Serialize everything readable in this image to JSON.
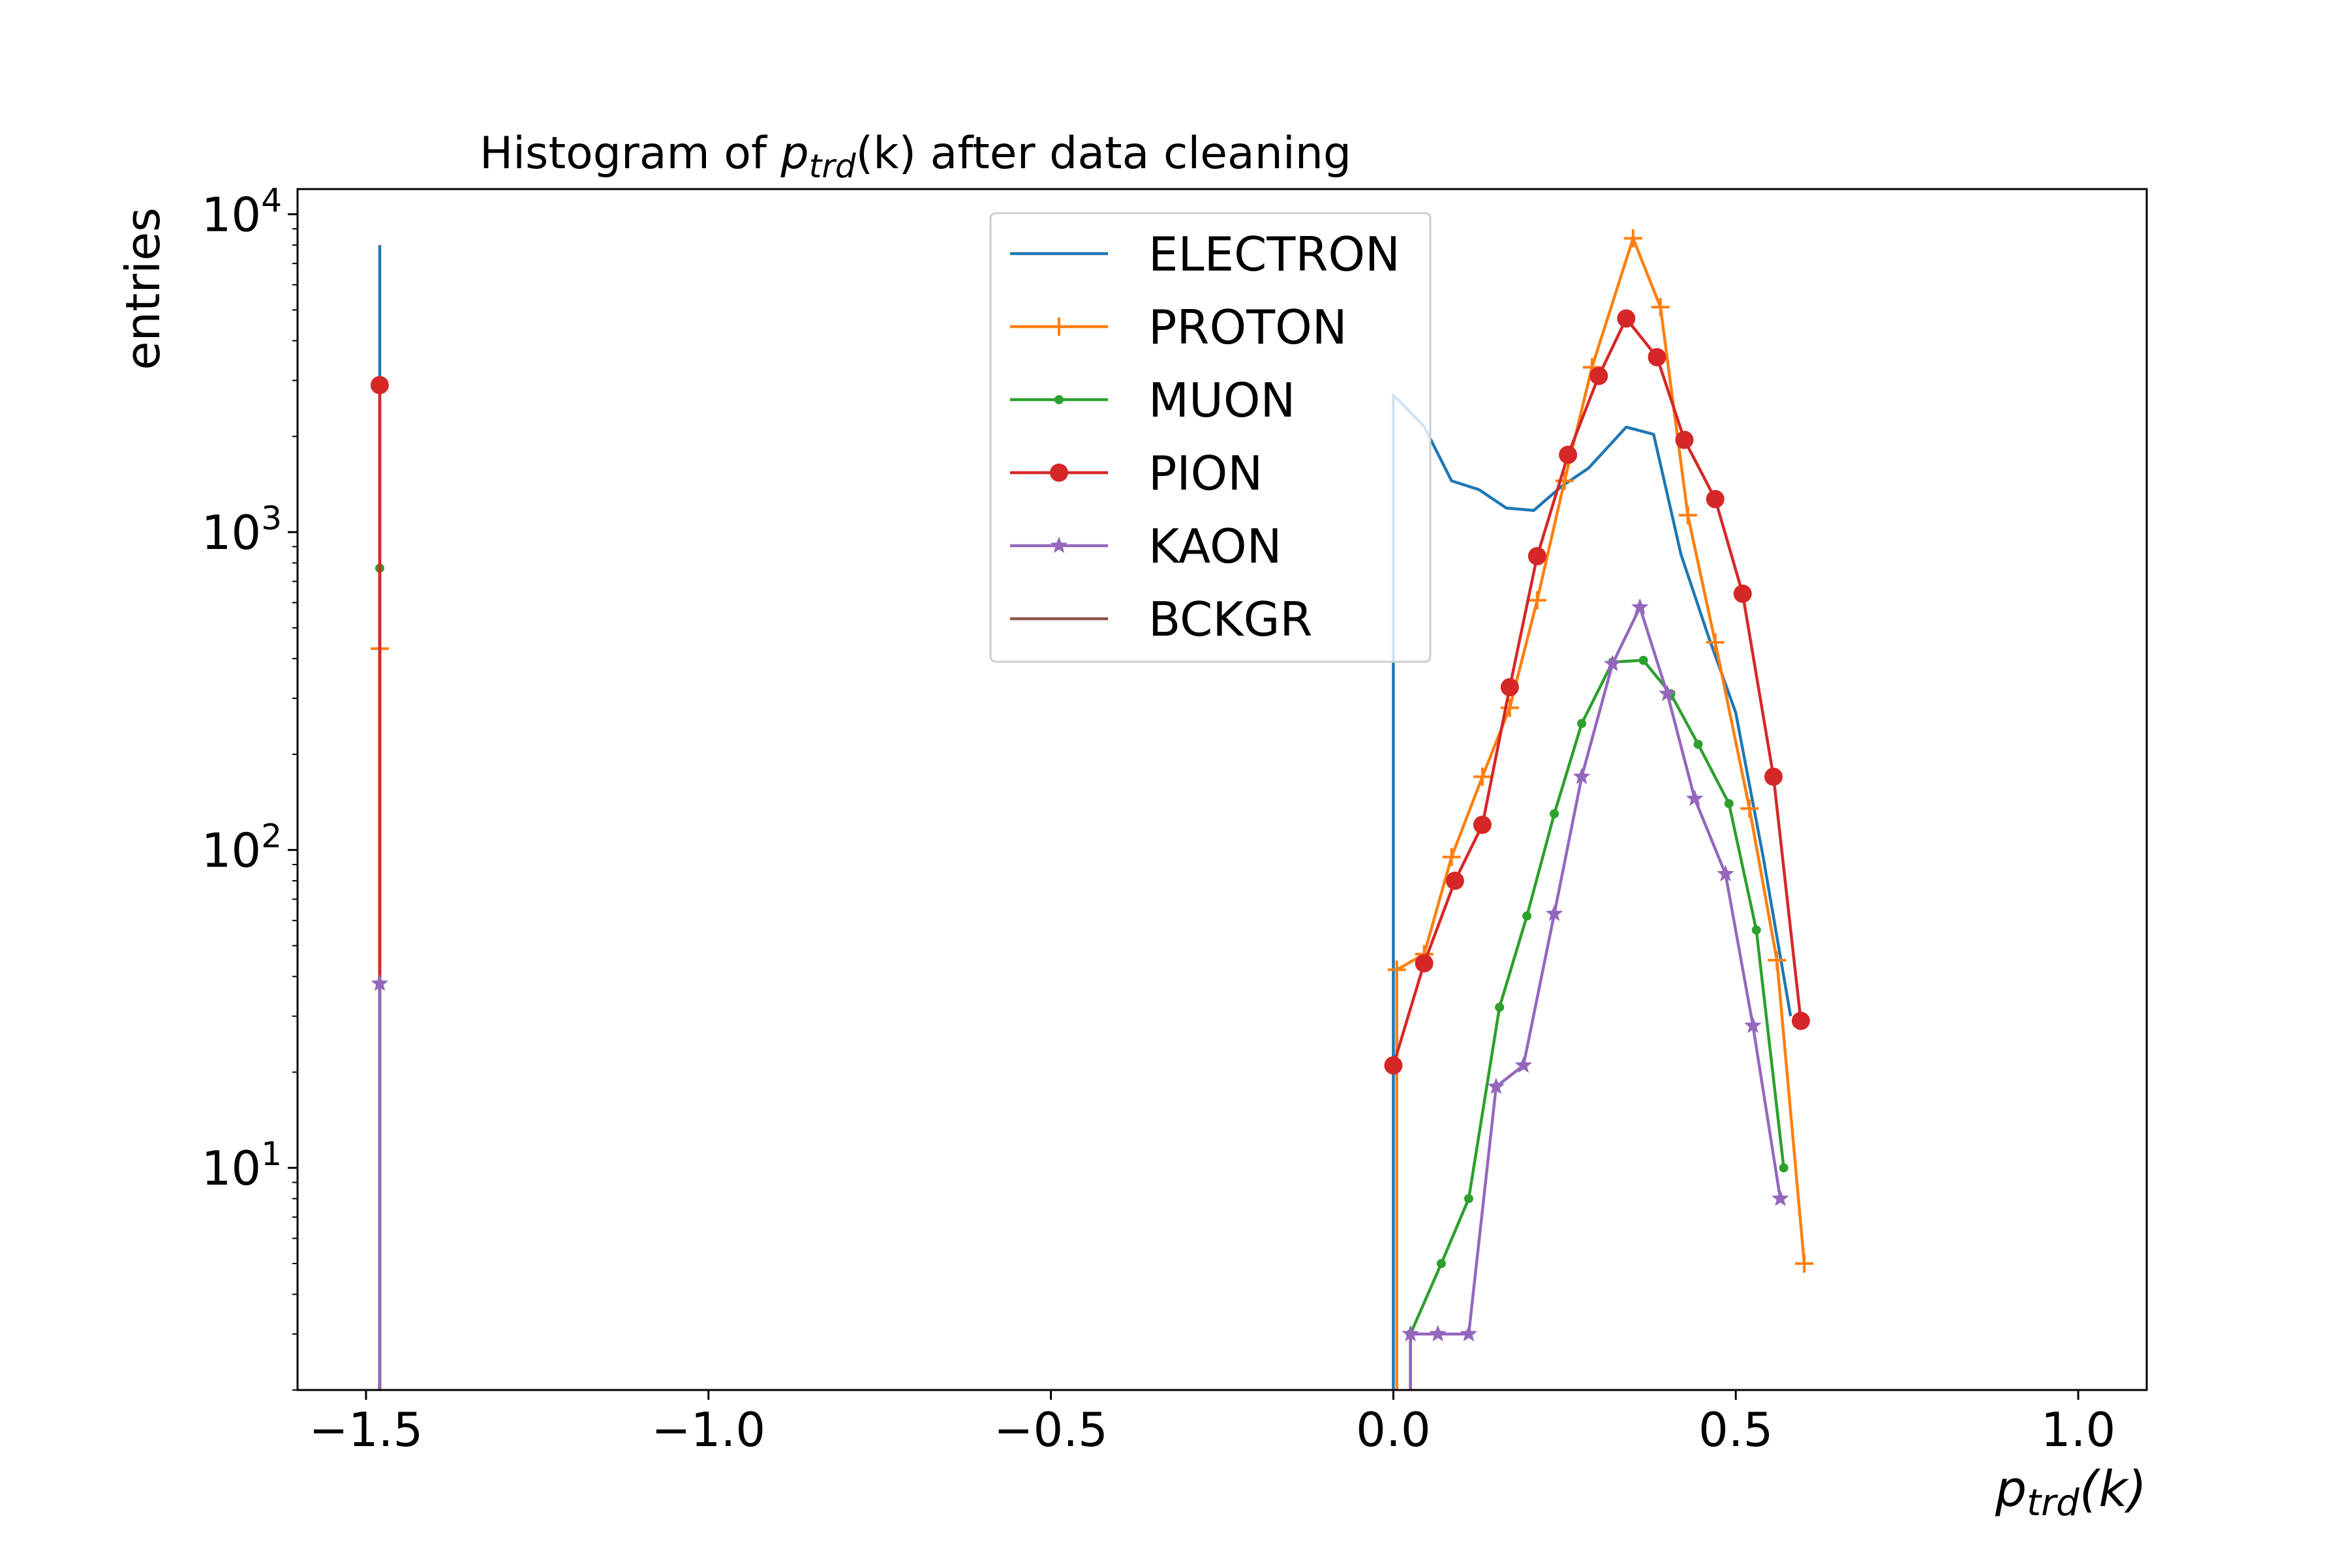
{
  "chart_data": {
    "type": "line",
    "title": {
      "prefix": "Histogram of ",
      "var": "p",
      "var_sub": "trd",
      "arg": "(k)",
      "suffix": " after data cleaning"
    },
    "xlabel": {
      "var": "p",
      "var_sub": "trd",
      "arg": "(k)"
    },
    "ylabel": "entries",
    "y_scale": "log",
    "xlim": [
      -1.6,
      1.1
    ],
    "ylim": [
      2,
      12000
    ],
    "x_ticks": [
      -1.5,
      -1.0,
      -0.5,
      0.0,
      0.5,
      1.0
    ],
    "x_tick_labels": [
      "−1.5",
      "−1.0",
      "−0.5",
      "0.0",
      "0.5",
      "1.0"
    ],
    "y_ticks": [
      {
        "value": 10,
        "base": "10",
        "exp": "1"
      },
      {
        "value": 100,
        "base": "10",
        "exp": "2"
      },
      {
        "value": 1000,
        "base": "10",
        "exp": "3"
      },
      {
        "value": 10000,
        "base": "10",
        "exp": "4"
      }
    ],
    "grid": false,
    "legend_position": "upper-center",
    "series": [
      {
        "name": "ELECTRON",
        "color": "#1f77b4",
        "marker": "none",
        "segments": [
          {
            "x": [
              -1.48,
              -1.48
            ],
            "y": [
              1,
              8000
            ]
          },
          {
            "x": [
              0.0,
              0.0,
              0.045,
              0.085,
              0.125,
              0.165,
              0.205,
              0.245,
              0.285,
              0.34,
              0.38,
              0.42,
              0.46,
              0.5,
              0.54,
              0.58
            ],
            "y": [
              1,
              2700,
              2150,
              1450,
              1360,
              1190,
              1170,
              1390,
              1590,
              2140,
              2030,
              850,
              470,
              270,
              95,
              30
            ]
          }
        ]
      },
      {
        "name": "PROTON",
        "color": "#ff7f0e",
        "marker": "plus",
        "segments": [
          {
            "x": [
              -1.48,
              -1.48
            ],
            "y": [
              1,
              430
            ]
          },
          {
            "x": [
              0.005,
              0.005,
              0.045,
              0.085,
              0.13,
              0.17,
              0.21,
              0.25,
              0.29,
              0.35,
              0.39,
              0.43,
              0.47,
              0.52,
              0.56,
              0.6
            ],
            "y": [
              1,
              42,
              47,
              95,
              170,
              280,
              610,
              1450,
              3300,
              8400,
              5100,
              1130,
              450,
              135,
              45,
              5
            ]
          }
        ]
      },
      {
        "name": "MUON",
        "color": "#2ca02c",
        "marker": "point",
        "segments": [
          {
            "x": [
              -1.48,
              -1.48
            ],
            "y": [
              1,
              770
            ]
          },
          {
            "x": [
              0.025,
              0.025,
              0.07,
              0.11,
              0.155,
              0.195,
              0.235,
              0.275,
              0.32,
              0.365,
              0.405,
              0.445,
              0.49,
              0.53,
              0.57
            ],
            "y": [
              1,
              3,
              5,
              8,
              32,
              62,
              130,
              250,
              390,
              395,
              310,
              215,
              140,
              56,
              10
            ]
          }
        ]
      },
      {
        "name": "PION",
        "color": "#d62728",
        "marker": "circle",
        "segments": [
          {
            "x": [
              -1.48,
              -1.48
            ],
            "y": [
              1,
              2900
            ]
          },
          {
            "x": [
              0.0,
              0.045,
              0.09,
              0.13,
              0.17,
              0.21,
              0.255,
              0.3,
              0.34,
              0.385,
              0.425,
              0.47,
              0.51,
              0.555,
              0.595
            ],
            "y": [
              21,
              44,
              80,
              120,
              325,
              840,
              1750,
              3100,
              4700,
              3550,
              1950,
              1270,
              640,
              170,
              29
            ]
          }
        ]
      },
      {
        "name": "KAON",
        "color": "#9467bd",
        "marker": "star",
        "segments": [
          {
            "x": [
              -1.48,
              -1.48
            ],
            "y": [
              1,
              38
            ]
          },
          {
            "x": [
              0.025,
              0.025,
              0.065,
              0.11,
              0.15,
              0.19,
              0.235,
              0.275,
              0.32,
              0.36,
              0.4,
              0.44,
              0.485,
              0.525,
              0.565
            ],
            "y": [
              1,
              3,
              3,
              3,
              18,
              21,
              63,
              170,
              385,
              580,
              310,
              145,
              84,
              28,
              8
            ]
          }
        ]
      },
      {
        "name": "BCKGR",
        "color": "#8c564b",
        "marker": "none",
        "segments": []
      }
    ]
  }
}
